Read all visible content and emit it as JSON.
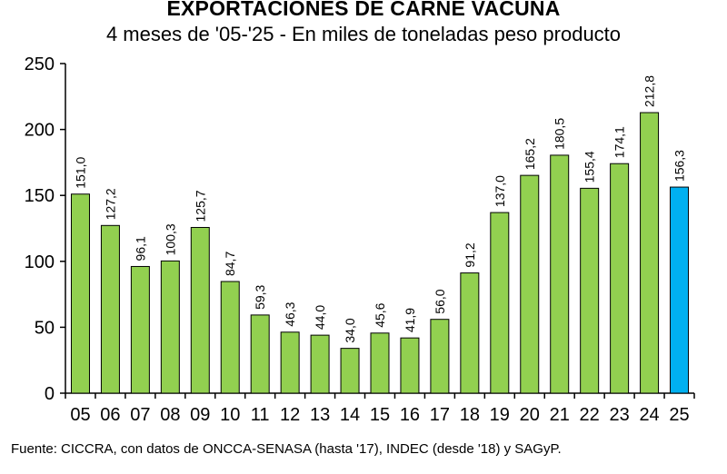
{
  "chart_data": {
    "type": "bar",
    "title": "EXPORTACIONES DE CARNE VACUNA",
    "subtitle": "4 meses de '05-'25 - En miles de toneladas peso producto",
    "xlabel": "",
    "ylabel": "",
    "ylim": [
      0,
      250
    ],
    "yticks": [
      "0",
      "50",
      "100",
      "150",
      "200",
      "250"
    ],
    "grid": false,
    "categories": [
      "05",
      "06",
      "07",
      "08",
      "09",
      "10",
      "11",
      "12",
      "13",
      "14",
      "15",
      "16",
      "17",
      "18",
      "19",
      "20",
      "21",
      "22",
      "23",
      "24",
      "25"
    ],
    "values": [
      151.0,
      127.2,
      96.1,
      100.3,
      125.7,
      84.7,
      59.3,
      46.3,
      44.0,
      34.0,
      45.6,
      41.9,
      56.0,
      91.2,
      137.0,
      165.2,
      180.5,
      155.4,
      174.1,
      212.8,
      156.3
    ],
    "value_labels": [
      "151,0",
      "127,2",
      "96,1",
      "100,3",
      "125,7",
      "84,7",
      "59,3",
      "46,3",
      "44,0",
      "34,0",
      "45,6",
      "41,9",
      "56,0",
      "91,2",
      "137,0",
      "165,2",
      "180,5",
      "155,4",
      "174,1",
      "212,8",
      "156,3"
    ],
    "highlight_index": 20,
    "colors": {
      "bar": "#92D050",
      "highlight": "#00B0F0",
      "outline": "#000000"
    }
  },
  "source_note": "Fuente: CICCRA, con datos de ONCCA-SENASA (hasta '17), INDEC (desde '18) y SAGyP."
}
